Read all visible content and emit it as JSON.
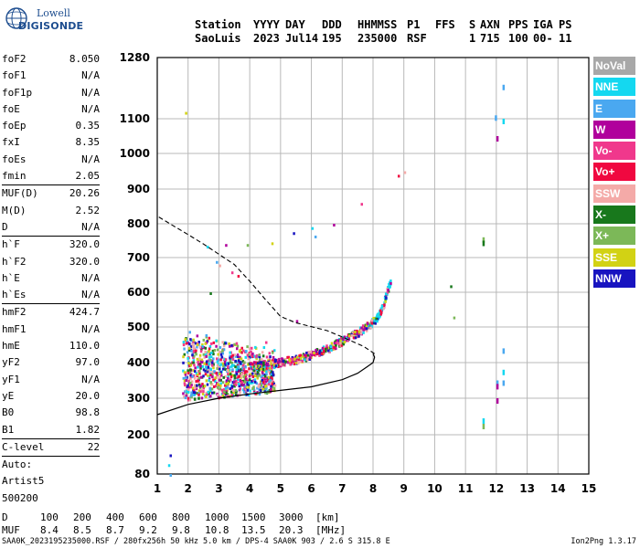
{
  "logo": {
    "line1": "Lowell",
    "line2": "DIGISONDE"
  },
  "header": {
    "row1": [
      "Station",
      "YYYY",
      "DAY",
      "DDD",
      "HHMMSS",
      "P1",
      "FFS",
      "S",
      "AXN",
      "PPS",
      "IGA",
      "PS"
    ],
    "row2": [
      "SaoLuis",
      "2023",
      "Jul14",
      "195",
      "235000",
      "RSF",
      "",
      "1",
      "715",
      "100",
      "00-",
      "11"
    ]
  },
  "params": [
    {
      "label": "foF2",
      "value": "8.050"
    },
    {
      "label": "foF1",
      "value": "N/A"
    },
    {
      "label": "foF1p",
      "value": "N/A"
    },
    {
      "label": "foE",
      "value": "N/A"
    },
    {
      "label": "foEp",
      "value": "0.35"
    },
    {
      "label": "fxI",
      "value": "8.35"
    },
    {
      "label": "foEs",
      "value": "N/A"
    },
    {
      "label": "fmin",
      "value": "2.05"
    },
    {
      "sep": true
    },
    {
      "label": "MUF(D)",
      "value": "20.26"
    },
    {
      "label": "M(D)",
      "value": "2.52"
    },
    {
      "label": "D",
      "value": "N/A"
    },
    {
      "sep": true
    },
    {
      "label": "h`F",
      "value": "320.0"
    },
    {
      "label": "h`F2",
      "value": "320.0"
    },
    {
      "label": "h`E",
      "value": "N/A"
    },
    {
      "label": "h`Es",
      "value": "N/A"
    },
    {
      "sep": true
    },
    {
      "label": "hmF2",
      "value": "424.7"
    },
    {
      "label": "hmF1",
      "value": "N/A"
    },
    {
      "label": "hmE",
      "value": "110.0"
    },
    {
      "label": "yF2",
      "value": "97.0"
    },
    {
      "label": "yF1",
      "value": "N/A"
    },
    {
      "label": "yE",
      "value": "20.0"
    },
    {
      "label": "B0",
      "value": "98.8"
    },
    {
      "label": "B1",
      "value": "1.82"
    },
    {
      "sep": true
    },
    {
      "label": "C-level",
      "value": "22"
    },
    {
      "sep": true
    },
    {
      "label": "Auto:",
      "value": ""
    },
    {
      "label": "Artist5",
      "value": ""
    },
    {
      "label": "500200",
      "value": ""
    }
  ],
  "legend": [
    {
      "label": "NoVal",
      "color": "#a8a8a8"
    },
    {
      "label": "NNE",
      "color": "#14d8f0"
    },
    {
      "label": "E",
      "color": "#4aa8f0"
    },
    {
      "label": "W",
      "color": "#b0009c"
    },
    {
      "label": "Vo-",
      "color": "#f0388c"
    },
    {
      "label": "Vo+",
      "color": "#f00840"
    },
    {
      "label": "SSW",
      "color": "#f4aaa8"
    },
    {
      "label": "X-",
      "color": "#18781c"
    },
    {
      "label": "X+",
      "color": "#7cb858"
    },
    {
      "label": "SSE",
      "color": "#d2d214"
    },
    {
      "label": "NNW",
      "color": "#1814c0"
    }
  ],
  "muf_table": {
    "row_d": {
      "label": "D",
      "values": [
        "100",
        "200",
        "400",
        "600",
        "800",
        "1000",
        "1500",
        "3000"
      ],
      "unit": "[km]"
    },
    "row_muf": {
      "label": "MUF",
      "values": [
        "8.4",
        "8.5",
        "8.7",
        "9.2",
        "9.8",
        "10.8",
        "13.5",
        "20.3"
      ],
      "unit": "[MHz]"
    }
  },
  "footer": "SAA0K_2023195235000.RSF / 280fx256h 50 kHz 5.0 km / DPS-4 SAA0K 903 / 2.6 S 315.8 E",
  "version": "Ion2Png 1.3.17",
  "chart_data": {
    "type": "scatter",
    "xlim": [
      1,
      15
    ],
    "ylim": [
      80,
      1280
    ],
    "x_ticks": [
      1,
      2,
      3,
      4,
      5,
      6,
      7,
      8,
      9,
      10,
      11,
      12,
      13,
      14,
      15
    ],
    "y_ticks": [
      80,
      200,
      300,
      400,
      500,
      600,
      700,
      800,
      900,
      1000,
      1100,
      1280
    ],
    "grid": true,
    "trace_o_mode": [
      [
        4.0,
        392
      ],
      [
        4.5,
        395
      ],
      [
        5.0,
        405
      ],
      [
        5.5,
        412
      ],
      [
        6.0,
        425
      ],
      [
        6.5,
        442
      ],
      [
        7.0,
        465
      ],
      [
        7.5,
        488
      ],
      [
        7.9,
        512
      ],
      [
        8.1,
        530
      ],
      [
        8.3,
        565
      ],
      [
        8.45,
        610
      ],
      [
        8.55,
        640
      ]
    ],
    "echo_clusters": [
      {
        "freq_range": [
          1.8,
          4.8
        ],
        "height_range": [
          280,
          520
        ]
      },
      {
        "freq_range": [
          11.9,
          12.3
        ],
        "height_range": [
          300,
          1150
        ]
      },
      {
        "freq_range": [
          11.5,
          11.6
        ],
        "height_range": [
          230,
          760
        ]
      }
    ],
    "profile_true_height": [
      [
        1,
        255
      ],
      [
        2,
        283
      ],
      [
        3,
        300
      ],
      [
        4,
        312
      ],
      [
        5,
        322
      ],
      [
        6,
        332
      ],
      [
        7,
        352
      ],
      [
        7.5,
        370
      ],
      [
        7.8,
        388
      ],
      [
        8.0,
        400
      ],
      [
        8.05,
        415
      ],
      [
        8.0,
        425
      ]
    ],
    "profile_topside": [
      [
        8.05,
        425
      ],
      [
        7.7,
        445
      ],
      [
        7,
        472
      ],
      [
        6.5,
        490
      ],
      [
        5.5,
        512
      ],
      [
        5,
        530
      ],
      [
        4.5,
        580
      ],
      [
        4.0,
        632
      ],
      [
        3.5,
        680
      ],
      [
        2.5,
        740
      ],
      [
        2,
        768
      ],
      [
        1.5,
        795
      ],
      [
        1.0,
        822
      ]
    ]
  }
}
